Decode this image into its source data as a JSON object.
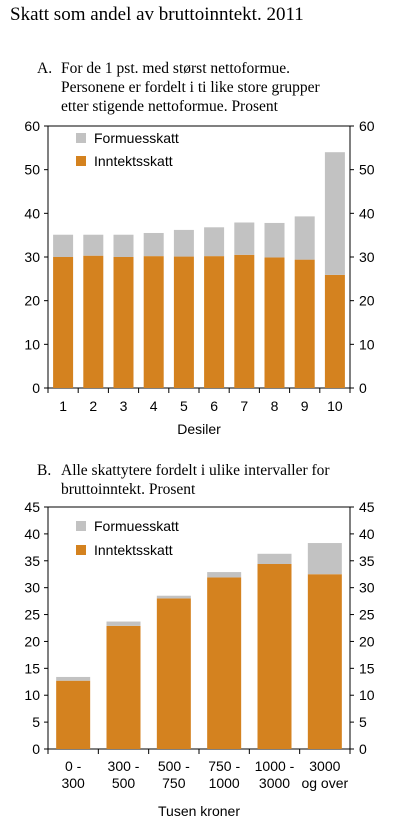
{
  "title": "Skatt som andel av bruttoinntekt. 2011",
  "colors": {
    "income_tax": "#D4821F",
    "wealth_tax": "#C2C2C2",
    "axis": "#000000"
  },
  "chart_data": [
    {
      "letter": "A.",
      "subtitle_lines": [
        "For de 1 pst. med størst nettoformue.",
        "Personene er fordelt i ti like store grupper",
        "etter stigende nettoformue. Prosent"
      ],
      "type": "bar",
      "stacked": true,
      "categories": [
        "1",
        "2",
        "3",
        "4",
        "5",
        "6",
        "7",
        "8",
        "9",
        "10"
      ],
      "series": [
        {
          "name": "Inntektsskatt",
          "color": "#D4821F",
          "values": [
            30,
            30.3,
            30,
            30.2,
            30.1,
            30.2,
            30.5,
            29.9,
            29.4,
            25.9
          ]
        },
        {
          "name": "Formuesskatt",
          "color": "#C2C2C2",
          "values": [
            5.1,
            4.8,
            5.1,
            5.3,
            6.1,
            6.6,
            7.4,
            7.9,
            9.9,
            28.1
          ]
        }
      ],
      "xlabel": "Desiler",
      "ylim": [
        0,
        60
      ],
      "yticks": [
        0,
        10,
        20,
        30,
        40,
        50,
        60
      ],
      "grid": false,
      "legend_position": "top-left"
    },
    {
      "letter": "B.",
      "subtitle_lines": [
        "Alle skattytere fordelt i ulike intervaller for",
        "bruttoinntekt. Prosent"
      ],
      "type": "bar",
      "stacked": true,
      "categories": [
        [
          "0 -",
          "300"
        ],
        [
          "300 -",
          "500"
        ],
        [
          "500 -",
          "750"
        ],
        [
          "750 -",
          "1000"
        ],
        [
          "1000 -",
          "3000"
        ],
        [
          "3000",
          "og over"
        ]
      ],
      "series": [
        {
          "name": "Inntektsskatt",
          "color": "#D4821F",
          "values": [
            12.7,
            22.9,
            28,
            31.9,
            34.4,
            32.5
          ]
        },
        {
          "name": "Formuesskatt",
          "color": "#C2C2C2",
          "values": [
            0.7,
            0.8,
            0.5,
            1,
            1.9,
            5.8
          ]
        }
      ],
      "xlabel": "Tusen kroner",
      "ylim": [
        0,
        45
      ],
      "yticks": [
        0,
        5,
        10,
        15,
        20,
        25,
        30,
        35,
        40,
        45
      ],
      "grid": false,
      "legend_position": "top-left"
    }
  ]
}
